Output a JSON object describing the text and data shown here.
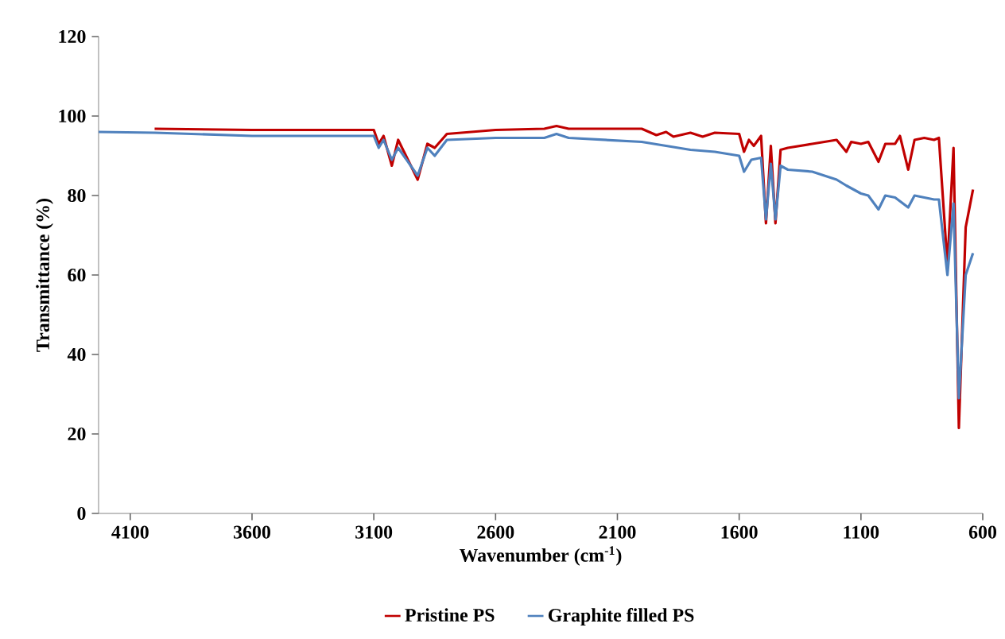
{
  "chart_data": {
    "type": "line",
    "xlabel": "Wavenumber (cm$^{-1}$)",
    "ylabel": "Transmittance (%)",
    "xlim": [
      4230,
      600
    ],
    "ylim": [
      0,
      120
    ],
    "xticks": [
      4100,
      3600,
      3100,
      2600,
      2100,
      1600,
      1100,
      600
    ],
    "yticks": [
      0,
      20,
      40,
      60,
      80,
      100,
      120
    ],
    "grid": false,
    "legend": "bottom",
    "marker": "none",
    "line_style": "solid",
    "series": [
      {
        "name": "Pristine PS",
        "color": "#c00000",
        "x": [
          4000,
          3600,
          3100,
          3080,
          3060,
          3026,
          3000,
          2920,
          2880,
          2850,
          2800,
          2600,
          2400,
          2350,
          2300,
          2000,
          1940,
          1900,
          1870,
          1800,
          1750,
          1700,
          1600,
          1580,
          1560,
          1540,
          1510,
          1490,
          1470,
          1451,
          1430,
          1400,
          1300,
          1200,
          1160,
          1140,
          1100,
          1070,
          1028,
          1000,
          960,
          940,
          906,
          880,
          840,
          800,
          780,
          745,
          720,
          698,
          670,
          640
        ],
        "values": [
          96.8,
          96.5,
          96.5,
          93,
          95,
          87.5,
          94,
          84,
          93,
          92,
          95.5,
          96.5,
          96.8,
          97.5,
          96.8,
          96.8,
          95.2,
          96,
          94.8,
          95.8,
          94.8,
          95.8,
          95.5,
          91,
          94,
          92.5,
          95,
          73,
          92.5,
          73,
          91.5,
          92,
          93,
          94,
          91,
          93.5,
          93,
          93.5,
          88.5,
          93,
          93,
          95,
          86.5,
          94,
          94.5,
          94,
          94.5,
          62.5,
          92,
          21.5,
          72,
          81.5
        ]
      },
      {
        "name": "Graphite filled PS",
        "color": "#4f81bd",
        "x": [
          4230,
          4000,
          3600,
          3100,
          3080,
          3060,
          3026,
          3000,
          2920,
          2880,
          2850,
          2800,
          2600,
          2400,
          2350,
          2300,
          2000,
          1900,
          1800,
          1700,
          1600,
          1580,
          1550,
          1510,
          1490,
          1470,
          1451,
          1430,
          1400,
          1300,
          1200,
          1160,
          1100,
          1070,
          1028,
          1000,
          960,
          906,
          880,
          800,
          780,
          745,
          720,
          698,
          670,
          640
        ],
        "values": [
          96,
          95.8,
          95,
          95,
          92,
          94,
          89,
          92,
          85,
          92,
          90,
          94,
          94.5,
          94.5,
          95.5,
          94.5,
          93.5,
          92.5,
          91.5,
          91,
          90,
          86,
          89,
          89.5,
          74,
          88,
          74,
          87.5,
          86.5,
          86,
          84,
          82.5,
          80.5,
          80,
          76.5,
          80,
          79.5,
          77,
          80,
          79,
          79,
          60,
          78,
          29,
          60,
          65.5
        ]
      }
    ]
  }
}
